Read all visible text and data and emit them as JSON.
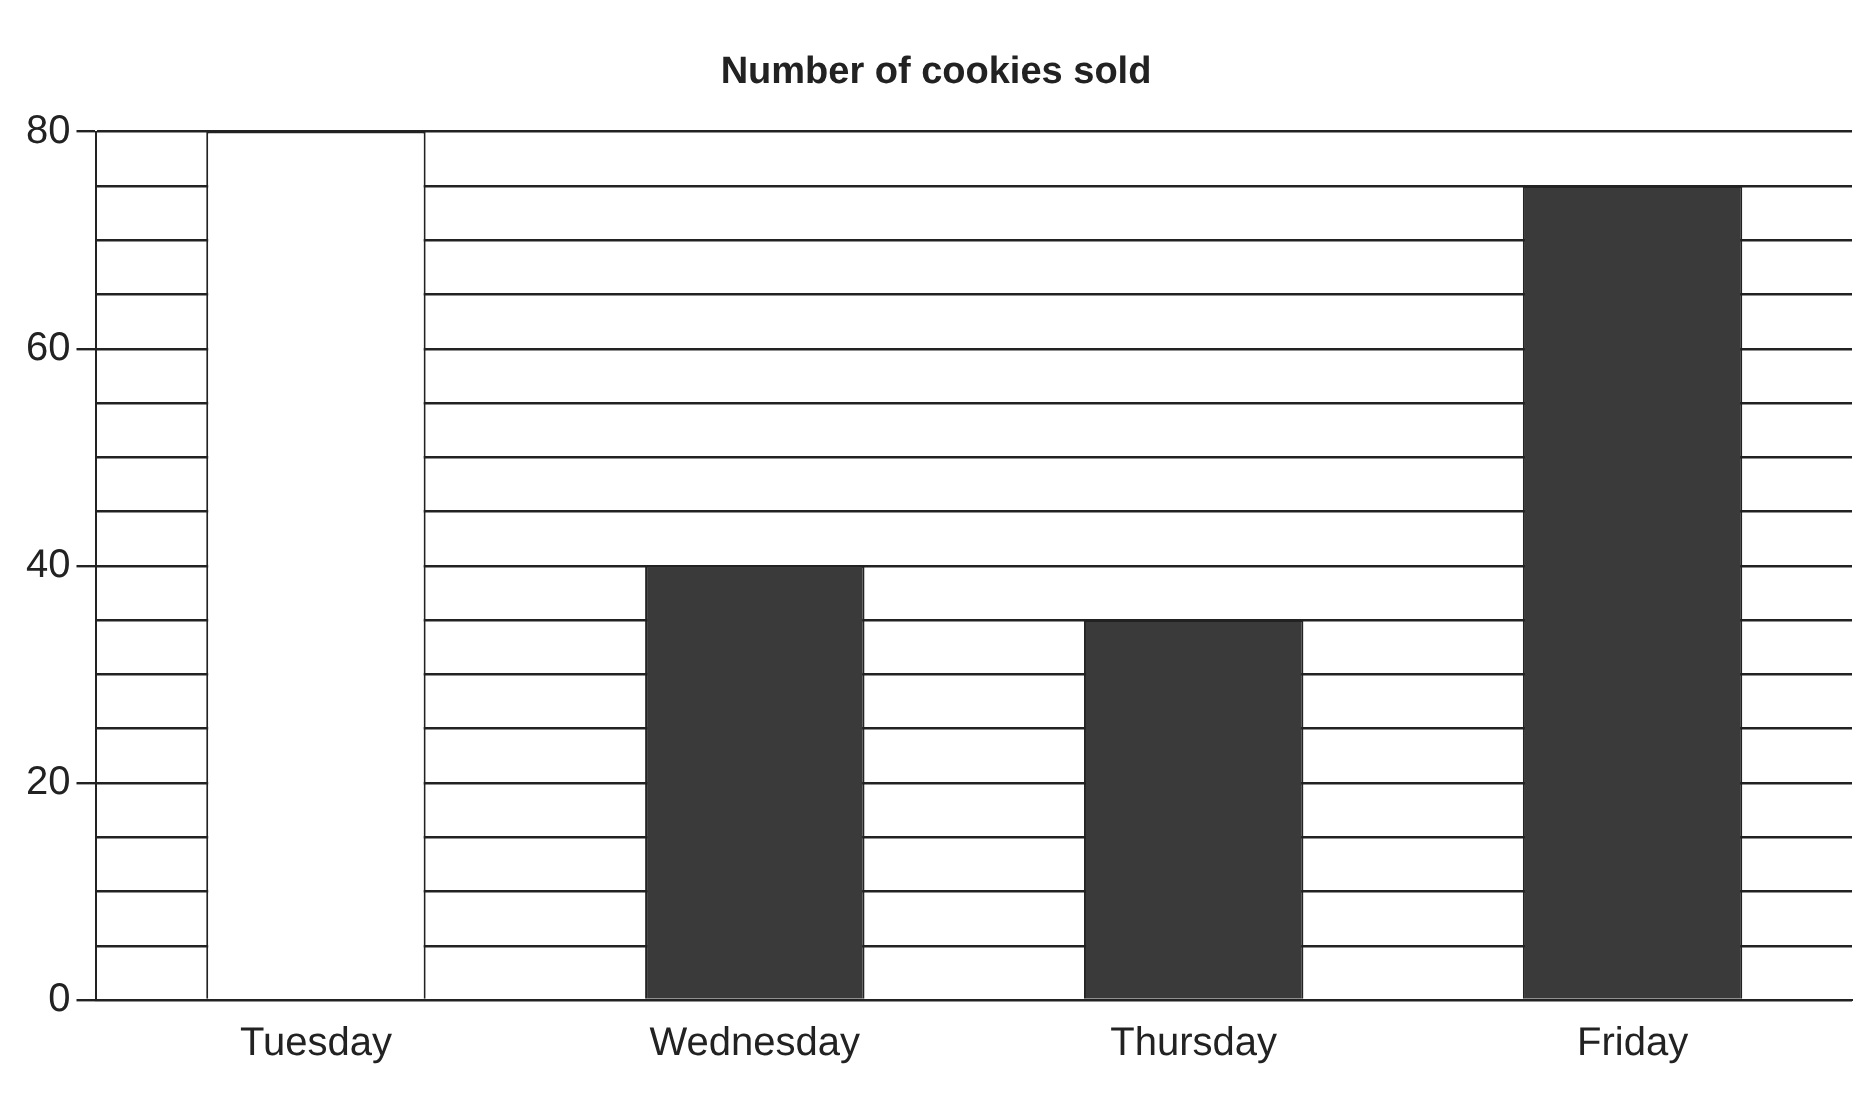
{
  "chart_data": {
    "type": "bar",
    "title": "Number of cookies sold",
    "categories": [
      "Tuesday",
      "Wednesday",
      "Thursday",
      "Friday"
    ],
    "values": [
      80,
      40,
      35,
      75
    ],
    "colors": [
      "#ffffff",
      "#3a3a3a",
      "#3a3a3a",
      "#3a3a3a"
    ],
    "ylim": [
      0,
      80
    ],
    "yticks": [
      0,
      {
        "value": 5,
        "label": null
      },
      {
        "value": 10,
        "label": null
      },
      {
        "value": 15,
        "label": null
      },
      20,
      {
        "value": 25,
        "label": null
      },
      {
        "value": 30,
        "label": null
      },
      {
        "value": 35,
        "label": null
      },
      40,
      {
        "value": 45,
        "label": null
      },
      {
        "value": 50,
        "label": null
      },
      {
        "value": 55,
        "label": null
      },
      60,
      {
        "value": 65,
        "label": null
      },
      {
        "value": 70,
        "label": null
      },
      {
        "value": 75,
        "label": null
      },
      80
    ],
    "grid": "y"
  }
}
